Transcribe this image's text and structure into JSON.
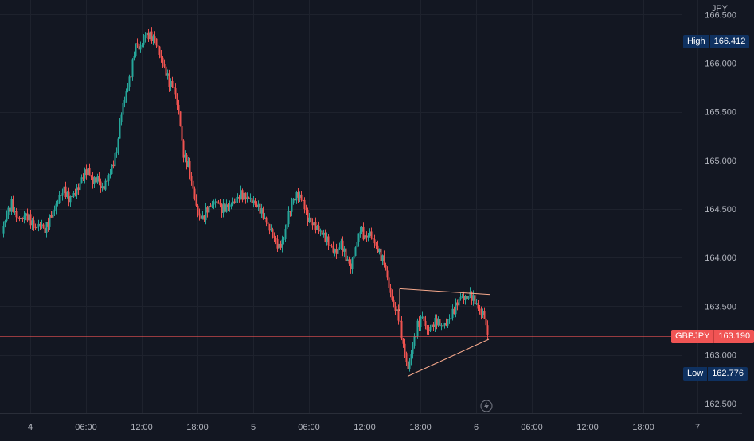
{
  "chart_data": {
    "type": "candlestick",
    "symbol": "GBPJPY",
    "currency": "JPY",
    "last_price_label": "163.190",
    "high_label": "High",
    "high_value": "166.412",
    "low_label": "Low",
    "low_value": "162.776",
    "ylim": [
      162.4,
      166.65
    ],
    "y_ticks": [
      "162.500",
      "163.000",
      "163.500",
      "164.000",
      "164.500",
      "165.000",
      "165.500",
      "166.000",
      "166.500"
    ],
    "x_ticks": [
      "4",
      "06:00",
      "12:00",
      "18:00",
      "5",
      "06:00",
      "12:00",
      "18:00",
      "6",
      "06:00",
      "12:00",
      "18:00",
      "7"
    ],
    "series": [
      {
        "name": "GBPJPY",
        "close_path": [
          [
            0,
            164.25
          ],
          [
            6,
            164.45
          ],
          [
            12,
            164.55
          ],
          [
            18,
            164.42
          ],
          [
            24,
            164.4
          ],
          [
            30,
            164.44
          ],
          [
            36,
            164.38
          ],
          [
            42,
            164.3
          ],
          [
            48,
            164.35
          ],
          [
            54,
            164.28
          ],
          [
            60,
            164.4
          ],
          [
            66,
            164.5
          ],
          [
            72,
            164.62
          ],
          [
            78,
            164.7
          ],
          [
            84,
            164.6
          ],
          [
            90,
            164.65
          ],
          [
            96,
            164.72
          ],
          [
            102,
            164.85
          ],
          [
            108,
            164.9
          ],
          [
            114,
            164.78
          ],
          [
            120,
            164.82
          ],
          [
            126,
            164.7
          ],
          [
            132,
            164.8
          ],
          [
            138,
            164.92
          ],
          [
            144,
            165.1
          ],
          [
            150,
            165.5
          ],
          [
            156,
            165.7
          ],
          [
            162,
            165.9
          ],
          [
            168,
            166.2
          ],
          [
            174,
            166.15
          ],
          [
            180,
            166.3
          ],
          [
            186,
            166.28
          ],
          [
            192,
            166.25
          ],
          [
            198,
            166.1
          ],
          [
            204,
            165.95
          ],
          [
            210,
            165.8
          ],
          [
            216,
            165.75
          ],
          [
            222,
            165.5
          ],
          [
            228,
            165.05
          ],
          [
            234,
            164.95
          ],
          [
            240,
            164.7
          ],
          [
            246,
            164.45
          ],
          [
            252,
            164.4
          ],
          [
            258,
            164.5
          ],
          [
            264,
            164.55
          ],
          [
            270,
            164.58
          ],
          [
            276,
            164.5
          ],
          [
            282,
            164.52
          ],
          [
            288,
            164.55
          ],
          [
            294,
            164.6
          ],
          [
            300,
            164.65
          ],
          [
            306,
            164.62
          ],
          [
            312,
            164.6
          ],
          [
            318,
            164.55
          ],
          [
            324,
            164.5
          ],
          [
            330,
            164.4
          ],
          [
            336,
            164.3
          ],
          [
            342,
            164.2
          ],
          [
            348,
            164.1
          ],
          [
            354,
            164.2
          ],
          [
            360,
            164.45
          ],
          [
            366,
            164.6
          ],
          [
            372,
            164.65
          ],
          [
            378,
            164.58
          ],
          [
            384,
            164.4
          ],
          [
            390,
            164.35
          ],
          [
            396,
            164.3
          ],
          [
            402,
            164.25
          ],
          [
            408,
            164.18
          ],
          [
            414,
            164.1
          ],
          [
            420,
            164.05
          ],
          [
            426,
            164.15
          ],
          [
            432,
            164.0
          ],
          [
            438,
            163.9
          ],
          [
            444,
            164.1
          ],
          [
            450,
            164.3
          ],
          [
            456,
            164.2
          ],
          [
            462,
            164.25
          ],
          [
            468,
            164.15
          ],
          [
            474,
            164.05
          ],
          [
            480,
            163.95
          ],
          [
            486,
            163.7
          ],
          [
            492,
            163.5
          ],
          [
            498,
            163.4
          ],
          [
            504,
            163.1
          ],
          [
            510,
            162.85
          ],
          [
            516,
            163.1
          ],
          [
            522,
            163.3
          ],
          [
            528,
            163.4
          ],
          [
            534,
            163.25
          ],
          [
            540,
            163.3
          ],
          [
            546,
            163.35
          ],
          [
            552,
            163.3
          ],
          [
            558,
            163.32
          ],
          [
            564,
            163.4
          ],
          [
            570,
            163.5
          ],
          [
            576,
            163.6
          ],
          [
            582,
            163.58
          ],
          [
            588,
            163.62
          ],
          [
            594,
            163.55
          ],
          [
            600,
            163.45
          ],
          [
            606,
            163.4
          ],
          [
            610,
            163.19
          ]
        ]
      }
    ],
    "annotations": {
      "upper_trendline": [
        [
          500,
          163.68
        ],
        [
          614,
          163.62
        ]
      ],
      "lower_trendline": [
        [
          510,
          162.78
        ],
        [
          612,
          163.16
        ]
      ],
      "upper_left_edge": [
        [
          500,
          163.68
        ],
        [
          500,
          163.45
        ]
      ]
    }
  }
}
